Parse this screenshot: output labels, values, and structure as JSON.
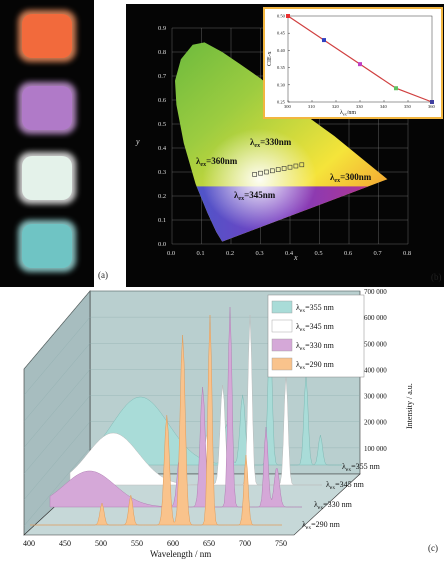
{
  "panel_a": {
    "label": "(a)",
    "samples": [
      {
        "color": "#f26a3c",
        "glow": "#ff9a66"
      },
      {
        "color": "#b07ac8",
        "glow": "#d6a3e8"
      },
      {
        "color": "#e4f2ea",
        "glow": "#ffffff"
      },
      {
        "color": "#6fc4c4",
        "glow": "#a6ecec"
      }
    ]
  },
  "panel_b": {
    "label": "(b)",
    "xlabel": "x",
    "ylabel": "y",
    "xticks": [
      "0.0",
      "0.1",
      "0.2",
      "0.3",
      "0.4",
      "0.5",
      "0.6",
      "0.7",
      "0.8"
    ],
    "yticks": [
      "0.0",
      "0.1",
      "0.2",
      "0.3",
      "0.4",
      "0.5",
      "0.6",
      "0.7",
      "0.8",
      "0.9"
    ],
    "annotations": [
      {
        "sub": "ex",
        "text": "=330nm"
      },
      {
        "sub": "ex",
        "text": "=360nm"
      },
      {
        "sub": "ex",
        "text": "=300nm"
      },
      {
        "sub": "ex",
        "text": "=345nm"
      }
    ],
    "points": [
      {
        "x": 0.28,
        "y": 0.29
      },
      {
        "x": 0.3,
        "y": 0.295
      },
      {
        "x": 0.32,
        "y": 0.3
      },
      {
        "x": 0.34,
        "y": 0.305
      },
      {
        "x": 0.36,
        "y": 0.31
      },
      {
        "x": 0.38,
        "y": 0.315
      },
      {
        "x": 0.4,
        "y": 0.32
      },
      {
        "x": 0.42,
        "y": 0.325
      },
      {
        "x": 0.44,
        "y": 0.33
      }
    ],
    "inset": {
      "ylabel": "CIE-x",
      "xlabel_sub": "ex",
      "xlabel_rest": "/nm",
      "xticks": [
        "300",
        "310",
        "320",
        "330",
        "340",
        "350",
        "360"
      ],
      "yticks": [
        "0.25",
        "0.30",
        "0.35",
        "0.40",
        "0.45",
        "0.50"
      ],
      "x": [
        300,
        315,
        330,
        345,
        360
      ],
      "y": [
        0.5,
        0.43,
        0.36,
        0.29,
        0.25
      ],
      "colors": [
        "#e83030",
        "#3040c0",
        "#c040c0",
        "#60c060",
        "#4040a0"
      ]
    }
  },
  "panel_c": {
    "label": "(c)",
    "xlabel": "Wavelength / nm",
    "zlabel": "Intensity / a.u.",
    "xticks": [
      "400",
      "450",
      "500",
      "550",
      "600",
      "650",
      "700",
      "750"
    ],
    "zticks": [
      "100 000",
      "200 000",
      "300 000",
      "400 000",
      "500 000",
      "600 000",
      "700 000"
    ],
    "legend": [
      {
        "sub": "ex",
        "text": "=355 nm",
        "color": "#a9dcd8"
      },
      {
        "sub": "ex",
        "text": "=345 nm",
        "color": "#ffffff"
      },
      {
        "sub": "ex",
        "text": "=330 nm",
        "color": "#d5a8d8"
      },
      {
        "sub": "ex",
        "text": "=290 nm",
        "color": "#f9c38c"
      }
    ],
    "depth_labels": [
      {
        "sub": "ex",
        "text": "=355 nm"
      },
      {
        "sub": "ex",
        "text": "=345 nm"
      },
      {
        "sub": "ex",
        "text": "=330 nm"
      },
      {
        "sub": "ex",
        "text": "=290 nm"
      }
    ]
  },
  "chart_data": {
    "type": "line",
    "title": "",
    "xlabel": "λex / nm",
    "ylabel": "CIE-x",
    "x": [
      300,
      315,
      330,
      345,
      360
    ],
    "series": [
      {
        "values": [
          0.5,
          0.43,
          0.36,
          0.29,
          0.25
        ]
      }
    ],
    "ylim": [
      0.25,
      0.5
    ],
    "xlim": [
      300,
      360
    ]
  }
}
